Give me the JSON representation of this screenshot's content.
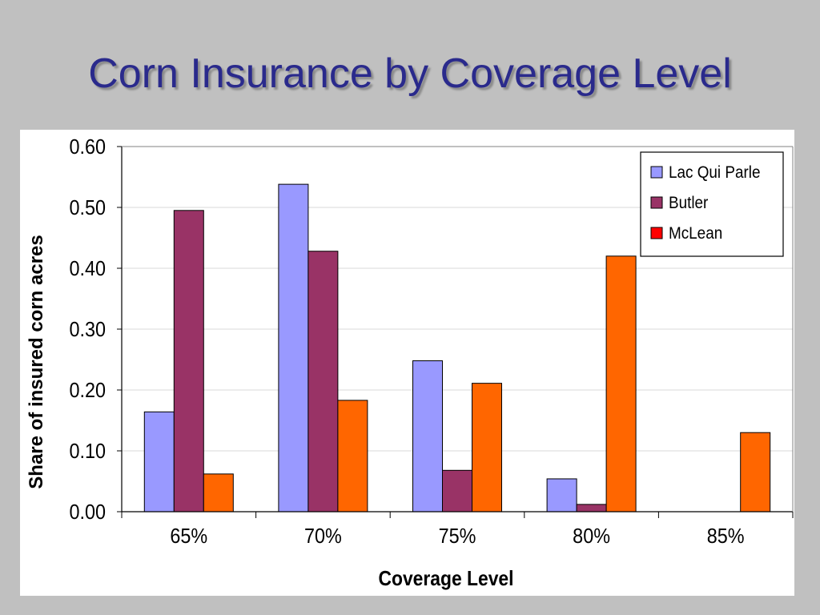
{
  "slide": {
    "title": "Corn Insurance by Coverage Level"
  },
  "chart_data": {
    "type": "bar",
    "title": "",
    "xlabel": "Coverage Level",
    "ylabel": "Share of insured corn acres",
    "categories": [
      "65%",
      "70%",
      "75%",
      "80%",
      "85%"
    ],
    "series": [
      {
        "name": "Lac Qui Parle",
        "color": "#9999ff",
        "values": [
          0.164,
          0.538,
          0.248,
          0.054,
          0.0
        ]
      },
      {
        "name": "Butler",
        "color": "#993366",
        "values": [
          0.495,
          0.428,
          0.068,
          0.012,
          0.0
        ]
      },
      {
        "name": "McLean",
        "color": "#ff6600",
        "legend_color": "#ff0000",
        "values": [
          0.062,
          0.183,
          0.211,
          0.42,
          0.13
        ]
      }
    ],
    "ylim": [
      0,
      0.6
    ],
    "yticks": [
      "0.00",
      "0.10",
      "0.20",
      "0.30",
      "0.40",
      "0.50",
      "0.60"
    ],
    "grid": true,
    "legend_position": "top-right"
  }
}
